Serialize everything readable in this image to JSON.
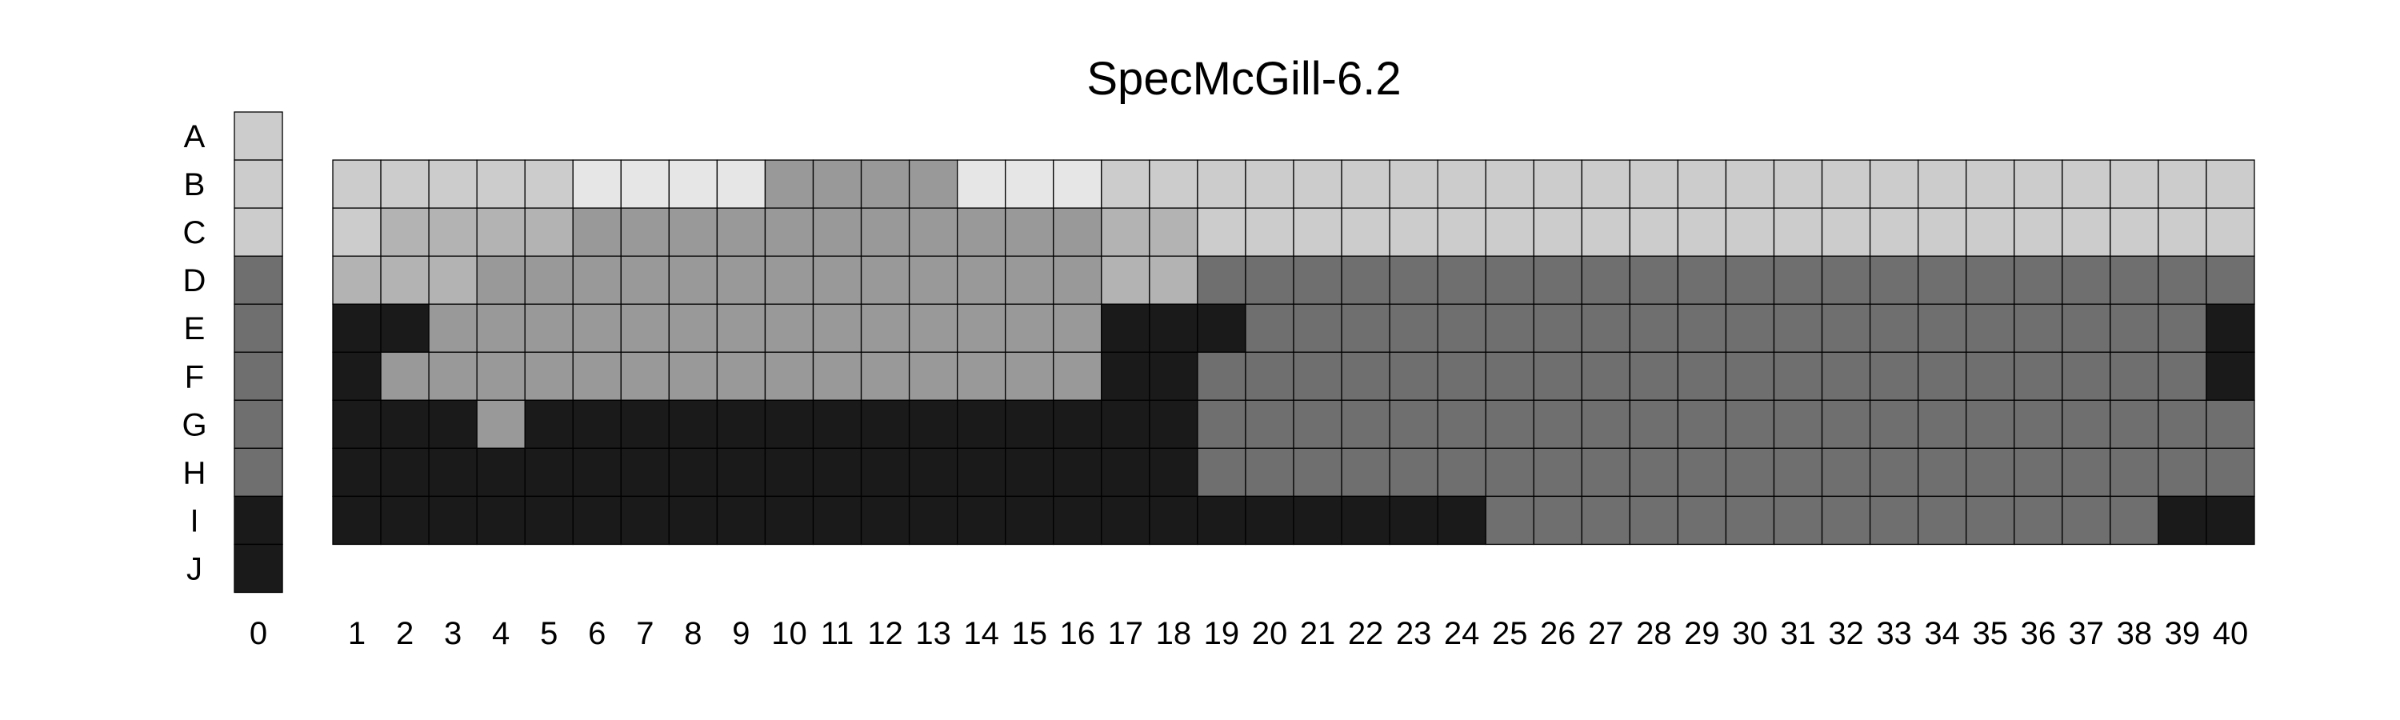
{
  "chart_data": {
    "type": "heatmap",
    "title": "SpecMcGill-6.2",
    "row_labels": [
      "A",
      "B",
      "C",
      "D",
      "E",
      "F",
      "G",
      "H",
      "I",
      "J"
    ],
    "reference_column": {
      "label": "0",
      "values": [
        1,
        1,
        1,
        3,
        3,
        3,
        3,
        3,
        4,
        4
      ]
    },
    "column_labels": [
      "1",
      "2",
      "3",
      "4",
      "5",
      "6",
      "7",
      "8",
      "9",
      "10",
      "11",
      "12",
      "13",
      "14",
      "15",
      "16",
      "17",
      "18",
      "19",
      "20",
      "21",
      "22",
      "23",
      "24",
      "25",
      "26",
      "27",
      "28",
      "29",
      "30",
      "31",
      "32",
      "33",
      "34",
      "35",
      "36",
      "37",
      "38",
      "39",
      "40"
    ],
    "grid_rows": [
      "B",
      "C",
      "D",
      "E",
      "F",
      "G",
      "H",
      "I"
    ],
    "grid": [
      [
        1,
        1,
        1,
        1,
        1,
        0,
        0,
        0,
        0,
        2,
        2,
        2,
        2,
        0,
        0,
        0,
        1,
        1,
        1,
        1,
        1,
        1,
        1,
        1,
        1,
        1,
        1,
        1,
        1,
        1,
        1,
        1,
        1,
        1,
        1,
        1,
        1,
        1,
        1,
        1
      ],
      [
        1,
        5,
        5,
        5,
        5,
        2,
        2,
        2,
        2,
        2,
        2,
        2,
        2,
        2,
        2,
        2,
        5,
        5,
        1,
        1,
        1,
        1,
        1,
        1,
        1,
        1,
        1,
        1,
        1,
        1,
        1,
        1,
        1,
        1,
        1,
        1,
        1,
        1,
        1,
        1
      ],
      [
        5,
        5,
        5,
        2,
        2,
        2,
        2,
        2,
        2,
        2,
        2,
        2,
        2,
        2,
        2,
        2,
        5,
        5,
        3,
        3,
        3,
        3,
        3,
        3,
        3,
        3,
        3,
        3,
        3,
        3,
        3,
        3,
        3,
        3,
        3,
        3,
        3,
        3,
        3,
        3
      ],
      [
        4,
        4,
        2,
        2,
        2,
        2,
        2,
        2,
        2,
        2,
        2,
        2,
        2,
        2,
        2,
        2,
        4,
        4,
        4,
        3,
        3,
        3,
        3,
        3,
        3,
        3,
        3,
        3,
        3,
        3,
        3,
        3,
        3,
        3,
        3,
        3,
        3,
        3,
        3,
        4
      ],
      [
        4,
        2,
        2,
        2,
        2,
        2,
        2,
        2,
        2,
        2,
        2,
        2,
        2,
        2,
        2,
        2,
        4,
        4,
        3,
        3,
        3,
        3,
        3,
        3,
        3,
        3,
        3,
        3,
        3,
        3,
        3,
        3,
        3,
        3,
        3,
        3,
        3,
        3,
        3,
        4
      ],
      [
        4,
        4,
        4,
        2,
        4,
        4,
        4,
        4,
        4,
        4,
        4,
        4,
        4,
        4,
        4,
        4,
        4,
        4,
        3,
        3,
        3,
        3,
        3,
        3,
        3,
        3,
        3,
        3,
        3,
        3,
        3,
        3,
        3,
        3,
        3,
        3,
        3,
        3,
        3,
        3
      ],
      [
        4,
        4,
        4,
        4,
        4,
        4,
        4,
        4,
        4,
        4,
        4,
        4,
        4,
        4,
        4,
        4,
        4,
        4,
        3,
        3,
        3,
        3,
        3,
        3,
        3,
        3,
        3,
        3,
        3,
        3,
        3,
        3,
        3,
        3,
        3,
        3,
        3,
        3,
        3,
        3
      ],
      [
        4,
        4,
        4,
        4,
        4,
        4,
        4,
        4,
        4,
        4,
        4,
        4,
        4,
        4,
        4,
        4,
        4,
        4,
        4,
        4,
        4,
        4,
        4,
        4,
        3,
        3,
        3,
        3,
        3,
        3,
        3,
        3,
        3,
        3,
        3,
        3,
        3,
        3,
        4,
        4
      ]
    ],
    "color_scale": [
      "#e6e6e6",
      "#cccccc",
      "#999999",
      "#6f6f6f",
      "#1a1a1a",
      "#b3b3b3"
    ]
  }
}
